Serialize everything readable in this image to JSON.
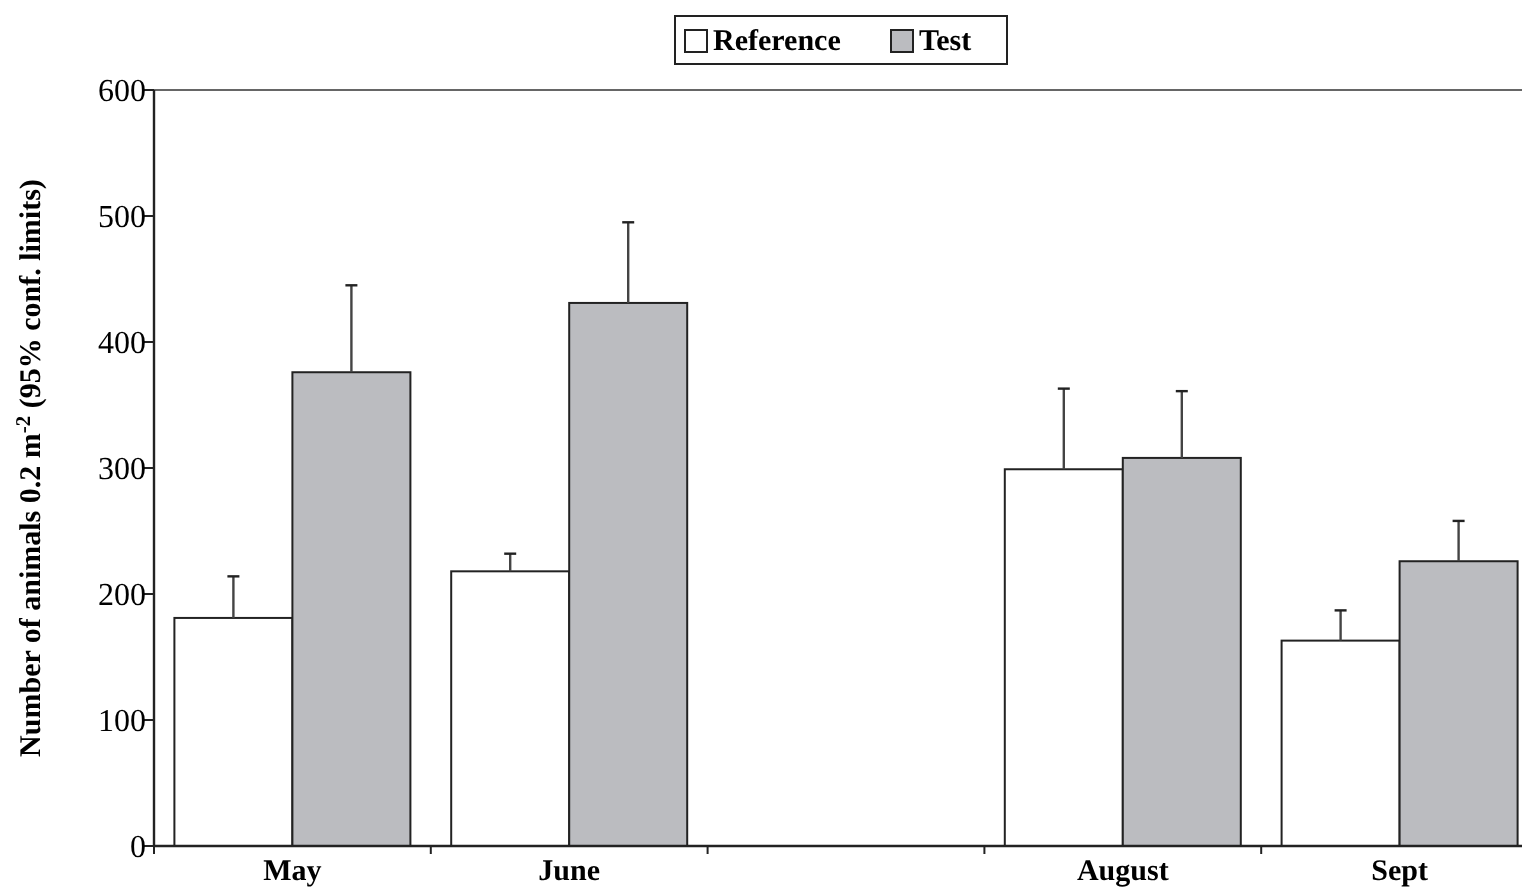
{
  "chart_data": {
    "type": "bar",
    "ylabel": "Number of animals 0.2 m$^{-2}$ (95% conf. limits)",
    "categories": [
      "May",
      "June",
      null,
      "August",
      "Sept"
    ],
    "series": [
      {
        "name": "Reference",
        "color": "#ffffff",
        "values": [
          181,
          218,
          null,
          299,
          163
        ],
        "errors": [
          [
            181,
            214
          ],
          [
            218,
            232
          ],
          null,
          [
            299,
            363
          ],
          [
            163,
            187
          ]
        ]
      },
      {
        "name": "Test",
        "color": "#bbbcc0",
        "values": [
          376,
          431,
          null,
          308,
          226
        ],
        "errors": [
          [
            376,
            445
          ],
          [
            431,
            495
          ],
          null,
          [
            308,
            361
          ],
          [
            226,
            258
          ]
        ]
      }
    ],
    "ylim": [
      0,
      600
    ],
    "yticks": [
      0,
      100,
      200,
      300,
      400,
      500,
      600
    ],
    "legend": "top",
    "grid": false
  }
}
